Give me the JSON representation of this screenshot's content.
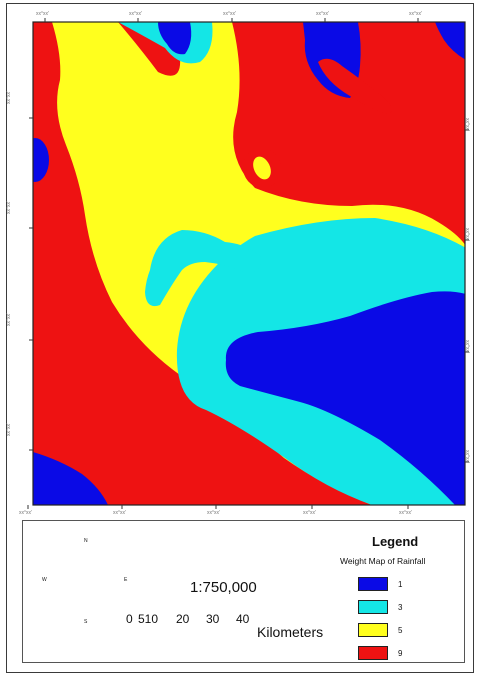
{
  "map": {
    "top_tick_labels": [
      "xx°xx'",
      "xx°xx'",
      "xx°xx'",
      "xx°xx'",
      "xx°xx'"
    ],
    "bottom_tick_labels": [
      "xx°xx'",
      "xx°xx'",
      "xx°xx'",
      "xx°xx'",
      "xx°xx'"
    ],
    "left_tick_labels": [
      "xx°xx'",
      "xx°xx'",
      "xx°xx'",
      "xx°xx'"
    ],
    "right_tick_labels": [
      "xx°xx'",
      "xx°xx'",
      "xx°xx'",
      "xx°xx'"
    ]
  },
  "legend": {
    "title": "Legend",
    "subtitle": "Weight Map of Rainfall",
    "classes": [
      {
        "label": "1",
        "color": "#0a0ae6"
      },
      {
        "label": "3",
        "color": "#14e6e6"
      },
      {
        "label": "5",
        "color": "#ffff1e"
      },
      {
        "label": "9",
        "color": "#ee1212"
      }
    ]
  },
  "scale": {
    "ratio": "1:750,000",
    "numbers": [
      "0",
      "510",
      "20",
      "30",
      "40"
    ],
    "units": "Kilometers"
  },
  "compass": {
    "n": "N",
    "s": "S",
    "e": "E",
    "w": "W"
  }
}
